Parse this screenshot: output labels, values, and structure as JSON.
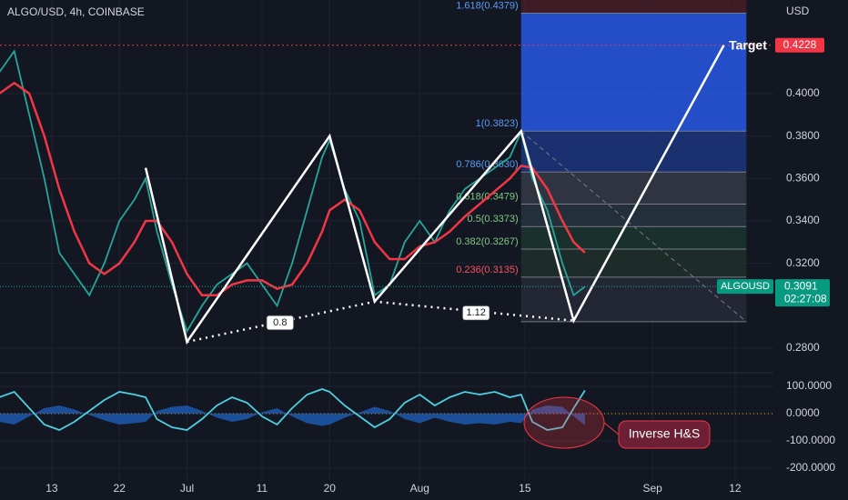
{
  "chart_data": [
    {
      "type": "line",
      "title": "ALGO/USD, 4h, COINBASE",
      "currency": "USD",
      "symbol": "ALGOUSD",
      "current_price": 0.3091,
      "countdown": "02:27:08",
      "xlim": [
        -6.9,
        96.1
      ],
      "ylim": [
        0.2706,
        0.4441
      ],
      "xticks": [
        {
          "value": 0,
          "label": "13"
        },
        {
          "value": 9,
          "label": "22"
        },
        {
          "value": 18,
          "label": "Jul"
        },
        {
          "value": 28,
          "label": "11"
        },
        {
          "value": 37,
          "label": "20"
        },
        {
          "value": 49,
          "label": "Aug"
        },
        {
          "value": 63,
          "label": "15"
        },
        {
          "value": 80,
          "label": "Sep"
        },
        {
          "value": 91,
          "label": "12"
        }
      ],
      "yticks": [
        {
          "value": 0.28,
          "label": "0.2800"
        },
        {
          "value": 0.32,
          "label": "0.3200"
        },
        {
          "value": 0.34,
          "label": "0.3400"
        },
        {
          "value": 0.36,
          "label": "0.3600"
        },
        {
          "value": 0.38,
          "label": "0.3800"
        },
        {
          "value": 0.4,
          "label": "0.4000"
        }
      ],
      "x": [
        -7,
        -5,
        -3,
        -1,
        1,
        3,
        5,
        7,
        9,
        11,
        12.5,
        14,
        16,
        18,
        20,
        22,
        24,
        26,
        28,
        30,
        32,
        34,
        36,
        37,
        39,
        41,
        43,
        45,
        47,
        49,
        51,
        53,
        55,
        57,
        59,
        61,
        62.5,
        64,
        66,
        68,
        69.5,
        71
      ],
      "series": [
        {
          "color": "#26a69a",
          "values": [
            0.41,
            0.42,
            0.39,
            0.36,
            0.325,
            0.315,
            0.305,
            0.32,
            0.34,
            0.35,
            0.36,
            0.335,
            0.31,
            0.288,
            0.3,
            0.31,
            0.315,
            0.32,
            0.31,
            0.3,
            0.32,
            0.345,
            0.37,
            0.378,
            0.355,
            0.34,
            0.305,
            0.31,
            0.33,
            0.34,
            0.33,
            0.345,
            0.355,
            0.36,
            0.365,
            0.37,
            0.382,
            0.36,
            0.345,
            0.32,
            0.305,
            0.309
          ]
        },
        {
          "color": "#f23645",
          "values": [
            0.4,
            0.405,
            0.4,
            0.38,
            0.355,
            0.335,
            0.32,
            0.315,
            0.32,
            0.33,
            0.34,
            0.34,
            0.33,
            0.315,
            0.305,
            0.305,
            0.31,
            0.312,
            0.312,
            0.308,
            0.31,
            0.32,
            0.335,
            0.345,
            0.35,
            0.345,
            0.33,
            0.322,
            0.322,
            0.328,
            0.33,
            0.335,
            0.342,
            0.348,
            0.354,
            0.36,
            0.366,
            0.365,
            0.355,
            0.34,
            0.33,
            0.325
          ]
        }
      ],
      "fib_levels": [
        {
          "label": "1.618(0.4379)",
          "value": 0.4379,
          "color": "#2962ff"
        },
        {
          "label": "1(0.3823)",
          "value": 0.3823,
          "color": "#1e3a8a"
        },
        {
          "label": "0.786(0.3630)",
          "value": 0.363,
          "color": "#3a3f4b"
        },
        {
          "label": "0.618(0.3479)",
          "value": 0.3479,
          "color": "#2a3a44"
        },
        {
          "label": "0.5(0.3373)",
          "value": 0.3373,
          "color": "#1e3a30"
        },
        {
          "label": "0.382(0.3267)",
          "value": 0.3267,
          "color": "#22332c"
        },
        {
          "label": "0.236(0.3135)",
          "value": 0.3135,
          "color": "#2a2e39"
        },
        {
          "value": 0.2925,
          "color": "#4a1f2a"
        }
      ],
      "fib_start": 62.5,
      "fib_end": 92.5,
      "zigzag": {
        "x": [
          12.5,
          18,
          37,
          43,
          62.5,
          69.5,
          89.5
        ],
        "y": [
          0.365,
          0.283,
          0.38,
          0.302,
          0.3823,
          0.293,
          0.4228
        ]
      },
      "neckline": {
        "x": [
          18,
          43,
          69.5
        ],
        "y": [
          0.283,
          0.302,
          0.293
        ]
      },
      "target": {
        "label": "Target",
        "value": 0.4228
      },
      "ratio_labels": [
        {
          "label": "0.8",
          "x": 30.4,
          "y": 0.292
        },
        {
          "label": "1.12",
          "x": 56.5,
          "y": 0.2966
        }
      ]
    },
    {
      "type": "line",
      "ylim": [
        -233.3,
        150
      ],
      "yticks": [
        {
          "value": 100,
          "label": "100.0000"
        },
        {
          "value": 0,
          "label": "0.0000"
        },
        {
          "value": -100,
          "label": "-100.0000"
        },
        {
          "value": -200,
          "label": "-200.0000"
        }
      ],
      "x": [
        -7,
        -5,
        -3,
        -1,
        1,
        3,
        5,
        7,
        9,
        11,
        12.5,
        14,
        16,
        18,
        20,
        22,
        24,
        26,
        28,
        30,
        32,
        34,
        36,
        37,
        39,
        41,
        43,
        45,
        47,
        49,
        51,
        53,
        55,
        57,
        59,
        61,
        62.5,
        64,
        66,
        68,
        69.5,
        71
      ],
      "series": [
        {
          "color": "#4dd0e1",
          "values": [
            60,
            80,
            20,
            -40,
            -60,
            -30,
            10,
            50,
            80,
            70,
            60,
            -20,
            -50,
            -60,
            -20,
            30,
            60,
            40,
            -10,
            -40,
            20,
            70,
            90,
            80,
            30,
            -10,
            -50,
            -20,
            40,
            70,
            30,
            60,
            80,
            70,
            80,
            60,
            70,
            -30,
            -60,
            -50,
            20,
            85
          ]
        }
      ],
      "annotation": "Inverse H&S"
    }
  ]
}
